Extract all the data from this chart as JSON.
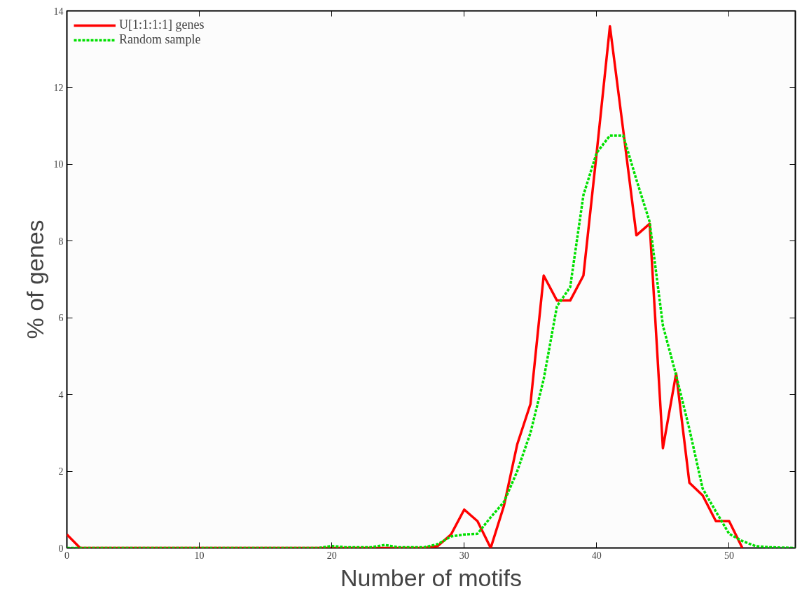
{
  "chart_data": {
    "type": "line",
    "xlabel": "Number of motifs",
    "ylabel": "% of genes",
    "x": [
      0,
      1,
      2,
      3,
      4,
      5,
      6,
      7,
      8,
      9,
      10,
      11,
      12,
      13,
      14,
      15,
      16,
      17,
      18,
      19,
      20,
      21,
      22,
      23,
      24,
      25,
      26,
      27,
      28,
      29,
      30,
      31,
      32,
      33,
      34,
      35,
      36,
      37,
      38,
      39,
      40,
      41,
      42,
      43,
      44,
      45,
      46,
      47,
      48,
      49,
      50,
      51,
      52,
      53,
      54,
      55
    ],
    "series": [
      {
        "name": "U[1:1:1:1] genes",
        "color": "#ff0000",
        "line_style": "solid",
        "values": [
          0.35,
          0,
          0,
          0,
          0,
          0,
          0,
          0,
          0,
          0,
          0,
          0,
          0,
          0,
          0,
          0,
          0,
          0,
          0,
          0,
          0,
          0,
          0,
          0,
          0,
          0,
          0,
          0,
          0.05,
          0.35,
          1.0,
          0.7,
          0,
          1.1,
          2.7,
          3.75,
          7.1,
          6.45,
          6.45,
          7.1,
          10.3,
          13.6,
          10.9,
          8.15,
          8.45,
          2.6,
          4.55,
          1.7,
          1.37,
          0.7,
          0.7,
          0,
          null,
          null,
          null,
          null
        ]
      },
      {
        "name": "Random sample",
        "color": "#00e000",
        "line_style": "dashed",
        "values": [
          0,
          0,
          0,
          0,
          0,
          0,
          0,
          0,
          0,
          0,
          0,
          0,
          0,
          0,
          0,
          0,
          0,
          0,
          0,
          0,
          0.05,
          0.02,
          0.02,
          0.02,
          0.08,
          0.02,
          0.02,
          0.02,
          0.1,
          0.3,
          0.35,
          0.37,
          0.8,
          1.2,
          2.0,
          3.0,
          4.4,
          6.3,
          6.8,
          9.2,
          10.3,
          10.75,
          10.75,
          9.6,
          8.5,
          5.8,
          4.5,
          3.1,
          1.55,
          0.95,
          0.37,
          0.18,
          0.05,
          0.02,
          0.01,
          0
        ]
      }
    ],
    "xlim": [
      0,
      55
    ],
    "ylim": [
      0,
      14
    ],
    "xticks": [
      0,
      10,
      20,
      30,
      40,
      50
    ],
    "yticks": [
      0,
      2,
      4,
      6,
      8,
      10,
      12,
      14
    ],
    "legend": "top left",
    "grid": false
  }
}
